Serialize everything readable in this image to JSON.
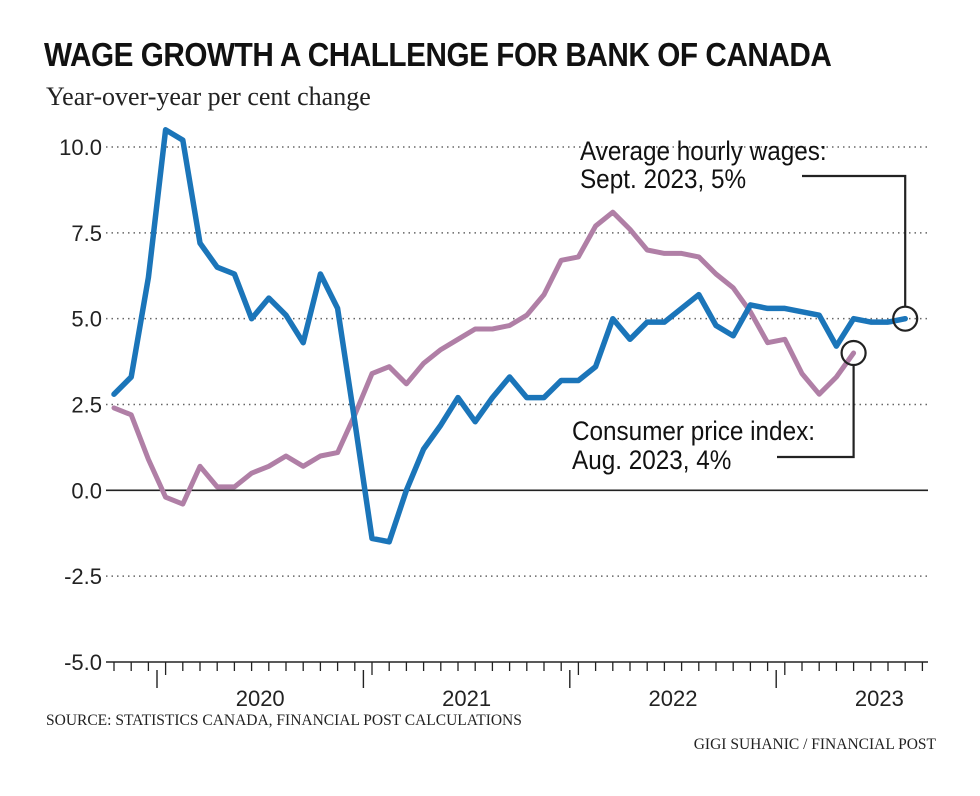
{
  "header": {
    "title": "WAGE GROWTH A CHALLENGE FOR BANK OF CANADA",
    "subtitle": "Year-over-year per cent change"
  },
  "footer": {
    "source": "SOURCE: STATISTICS CANADA, FINANCIAL POST CALCULATIONS",
    "credit": "GIGI SUHANIC / FINANCIAL POST"
  },
  "colors": {
    "wages": "#1b75b9",
    "cpi": "#b07fa6",
    "axis": "#222222",
    "grid": "#666666"
  },
  "chart_data": {
    "type": "line",
    "x": [
      "2019-10",
      "2019-11",
      "2019-12",
      "2020-01",
      "2020-02",
      "2020-03",
      "2020-04",
      "2020-05",
      "2020-06",
      "2020-07",
      "2020-08",
      "2020-09",
      "2020-10",
      "2020-11",
      "2020-12",
      "2021-01",
      "2021-02",
      "2021-03",
      "2021-04",
      "2021-05",
      "2021-06",
      "2021-07",
      "2021-08",
      "2021-09",
      "2021-10",
      "2021-11",
      "2021-12",
      "2022-01",
      "2022-02",
      "2022-03",
      "2022-04",
      "2022-05",
      "2022-06",
      "2022-07",
      "2022-08",
      "2022-09",
      "2022-10",
      "2022-11",
      "2022-12",
      "2023-01",
      "2023-02",
      "2023-03",
      "2023-04",
      "2023-05",
      "2023-06",
      "2023-07",
      "2023-08",
      "2023-09"
    ],
    "xtick_labels": [
      "2020",
      "2021",
      "2022",
      "2023"
    ],
    "ylim": [
      -5.0,
      10.0
    ],
    "yticks": [
      "10.0",
      "7.5",
      "5.0",
      "2.5",
      "0.0",
      "-2.5",
      "-5.0"
    ],
    "grid": "horizontal dotted",
    "series": [
      {
        "key": "wages",
        "values": [
          2.8,
          3.3,
          6.2,
          10.5,
          10.2,
          7.2,
          6.5,
          6.3,
          5.0,
          5.6,
          5.1,
          4.3,
          6.3,
          5.3,
          2.0,
          -1.4,
          -1.5,
          0.0,
          1.2,
          1.9,
          2.7,
          2.0,
          2.7,
          3.3,
          2.7,
          2.7,
          3.2,
          3.2,
          3.6,
          5.0,
          4.4,
          4.9,
          4.9,
          5.3,
          5.7,
          4.8,
          4.5,
          5.4,
          5.3,
          5.3,
          5.2,
          5.1,
          4.2,
          5.0,
          4.9,
          4.9,
          5.0,
          null
        ]
      },
      {
        "key": "cpi",
        "values": [
          2.4,
          2.2,
          0.9,
          -0.2,
          -0.4,
          0.7,
          0.1,
          0.1,
          0.5,
          0.7,
          1.0,
          0.7,
          1.0,
          1.1,
          2.2,
          3.4,
          3.6,
          3.1,
          3.7,
          4.1,
          4.4,
          4.7,
          4.7,
          4.8,
          5.1,
          5.7,
          6.7,
          6.8,
          7.7,
          8.1,
          7.6,
          7.0,
          6.9,
          6.9,
          6.8,
          6.3,
          5.9,
          5.2,
          4.3,
          4.4,
          3.4,
          2.8,
          3.3,
          4.0,
          null,
          null,
          null,
          null
        ]
      }
    ],
    "annotations": [
      {
        "target": "wages",
        "index": 46,
        "line1": "Average hourly wages:",
        "line2": "Sept. 2023, 5%"
      },
      {
        "target": "cpi",
        "index": 43,
        "line1": "Consumer price index:",
        "line2": "Aug. 2023, 4%"
      }
    ]
  }
}
